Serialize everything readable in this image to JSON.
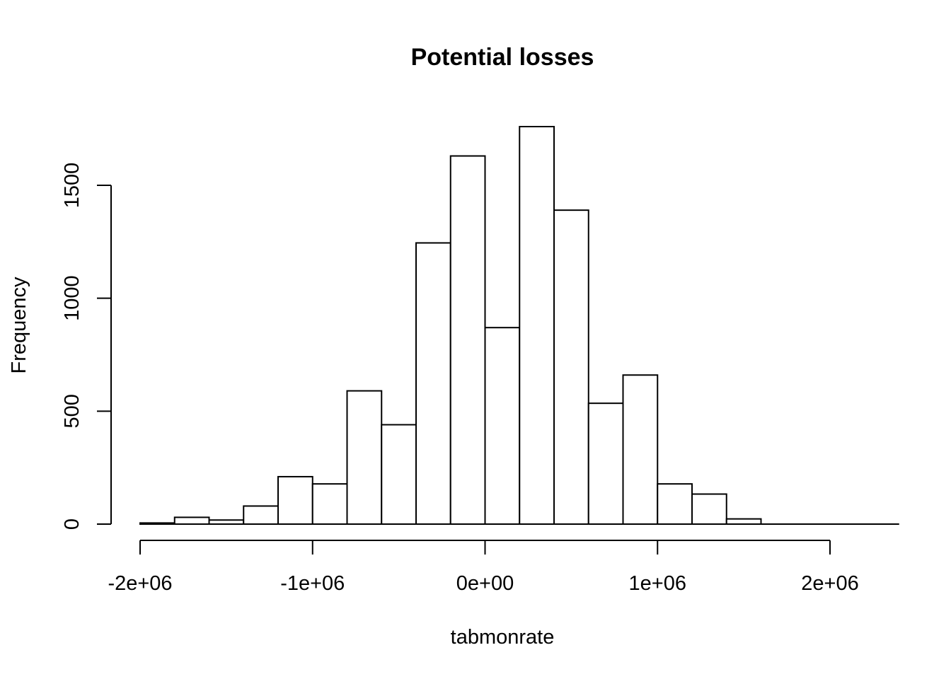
{
  "chart_data": {
    "type": "bar",
    "title": "Potential losses",
    "xlabel": "tabmonrate",
    "ylabel": "Frequency",
    "bin_edges": [
      -2000000,
      -1800000,
      -1600000,
      -1400000,
      -1200000,
      -1000000,
      -800000,
      -600000,
      -400000,
      -200000,
      0,
      200000,
      400000,
      600000,
      800000,
      1000000,
      1200000,
      1400000,
      1600000,
      1800000,
      2000000,
      2200000
    ],
    "values": [
      5,
      30,
      18,
      80,
      210,
      178,
      590,
      440,
      1245,
      1630,
      870,
      1760,
      1390,
      535,
      660,
      178,
      133,
      23,
      0,
      0,
      0
    ],
    "xlim": [
      -2000000,
      2000000
    ],
    "ylim": [
      0,
      1760
    ],
    "x_ticks": [
      -2000000,
      -1000000,
      0,
      1000000,
      2000000
    ],
    "x_tick_labels": [
      "-2e+06",
      "-1e+06",
      "0e+00",
      "1e+06",
      "2e+06"
    ],
    "y_ticks": [
      0,
      500,
      1000,
      1500
    ],
    "y_tick_labels": [
      "0",
      "500",
      "1000",
      "1500"
    ],
    "grid": false,
    "legend": "none"
  }
}
